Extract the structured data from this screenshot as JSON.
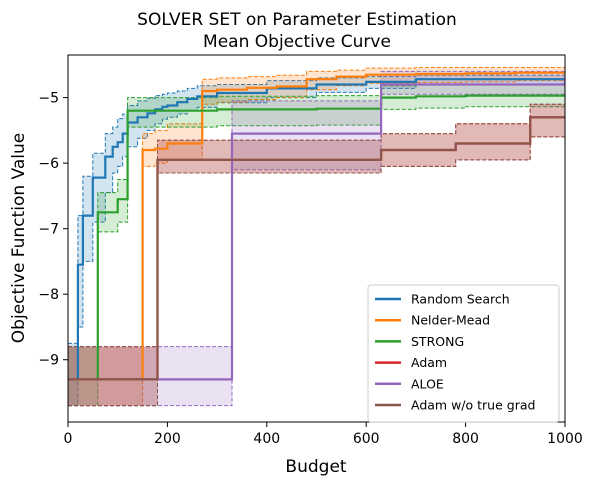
{
  "chart_data": {
    "type": "line",
    "title": "SOLVER SET on Parameter Estimation\nMean Objective Curve",
    "xlabel": "Budget",
    "ylabel": "Objective Function Value",
    "xlim": [
      0,
      1000
    ],
    "ylim": [
      -9.95,
      -4.35
    ],
    "xticks": [
      0,
      200,
      400,
      600,
      800,
      1000
    ],
    "yticks": [
      -9,
      -8,
      -7,
      -6,
      -5
    ],
    "grid": false,
    "legend_position": "lower right",
    "series": [
      {
        "name": "Random Search",
        "color": "#1f77b4",
        "x": [
          0,
          20,
          30,
          50,
          75,
          90,
          100,
          110,
          120,
          140,
          160,
          175,
          190,
          200,
          220,
          240,
          260,
          300,
          400,
          500,
          600,
          700,
          1000
        ],
        "y": [
          -9.3,
          -7.55,
          -6.8,
          -6.22,
          -5.9,
          -5.75,
          -5.68,
          -5.55,
          -5.38,
          -5.3,
          -5.24,
          -5.18,
          -5.14,
          -5.12,
          -5.07,
          -5.02,
          -4.98,
          -4.93,
          -4.86,
          -4.8,
          -4.76,
          -4.72,
          -4.72
        ],
        "upper": [
          -8.75,
          -6.8,
          -6.2,
          -5.85,
          -5.55,
          -5.45,
          -5.32,
          -5.25,
          -5.12,
          -5.05,
          -5.01,
          -4.97,
          -4.95,
          -4.93,
          -4.9,
          -4.86,
          -4.82,
          -4.8,
          -4.74,
          -4.7,
          -4.68,
          -4.66,
          -4.66
        ],
        "lower": [
          -9.7,
          -8.5,
          -7.5,
          -6.9,
          -6.45,
          -6.15,
          -6.05,
          -5.9,
          -5.75,
          -5.62,
          -5.5,
          -5.4,
          -5.33,
          -5.3,
          -5.25,
          -5.2,
          -5.15,
          -5.08,
          -5.0,
          -4.92,
          -4.86,
          -4.8,
          -4.8
        ]
      },
      {
        "name": "Nelder-Mead",
        "color": "#ff7f0e",
        "x": [
          0,
          150,
          175,
          200,
          270,
          300,
          360,
          420,
          480,
          540,
          600,
          700,
          800,
          900,
          1000
        ],
        "y": [
          -9.3,
          -5.8,
          -5.78,
          -5.7,
          -4.9,
          -4.88,
          -4.85,
          -4.83,
          -4.72,
          -4.68,
          -4.65,
          -4.64,
          -4.63,
          -4.62,
          -4.62
        ],
        "upper": [
          -8.8,
          -5.55,
          -5.5,
          -5.4,
          -4.72,
          -4.7,
          -4.68,
          -4.66,
          -4.6,
          -4.58,
          -4.55,
          -4.54,
          -4.54,
          -4.54,
          -4.54
        ],
        "lower": [
          -9.7,
          -6.05,
          -6.0,
          -5.95,
          -5.1,
          -5.07,
          -5.03,
          -5.0,
          -4.88,
          -4.82,
          -4.78,
          -4.77,
          -4.76,
          -4.74,
          -4.74
        ]
      },
      {
        "name": "STRONG",
        "color": "#2ca02c",
        "x": [
          0,
          60,
          100,
          120,
          300,
          500,
          630,
          700,
          800,
          1000
        ],
        "y": [
          -9.3,
          -6.75,
          -6.55,
          -5.2,
          -5.18,
          -5.17,
          -5.0,
          -4.98,
          -4.97,
          -4.97
        ],
        "upper": [
          -8.8,
          -6.45,
          -6.25,
          -5.0,
          -4.98,
          -4.97,
          -4.82,
          -4.8,
          -4.8,
          -4.8
        ],
        "lower": [
          -9.7,
          -7.05,
          -6.9,
          -5.45,
          -5.43,
          -5.42,
          -5.18,
          -5.16,
          -5.14,
          -5.14
        ]
      },
      {
        "name": "Adam",
        "color": "#d62728",
        "x": [
          0,
          180,
          630,
          780,
          930,
          1000
        ],
        "y": [
          -9.3,
          -5.95,
          -5.8,
          -5.7,
          -5.3,
          -5.3
        ],
        "upper": [
          -8.8,
          -5.65,
          -5.55,
          -5.4,
          -5.1,
          -5.1
        ],
        "lower": [
          -9.7,
          -6.15,
          -6.05,
          -5.95,
          -5.6,
          -5.6
        ]
      },
      {
        "name": "ALOE",
        "color": "#9467bd",
        "x": [
          0,
          330,
          630,
          1000
        ],
        "y": [
          -9.3,
          -5.55,
          -4.8,
          -4.7
        ],
        "upper": [
          -8.8,
          -5.05,
          -4.6,
          -4.6
        ],
        "lower": [
          -9.7,
          -6.1,
          -4.95,
          -4.8
        ]
      },
      {
        "name": "Adam w/o true grad",
        "color": "#8c564b",
        "x": [
          0,
          180,
          630,
          780,
          930,
          1000
        ],
        "y": [
          -9.3,
          -5.95,
          -5.8,
          -5.7,
          -5.3,
          -5.3
        ],
        "upper": [
          -8.8,
          -5.65,
          -5.55,
          -5.4,
          -5.1,
          -5.1
        ],
        "lower": [
          -9.7,
          -6.15,
          -6.05,
          -5.95,
          -5.6,
          -5.6
        ]
      }
    ]
  }
}
